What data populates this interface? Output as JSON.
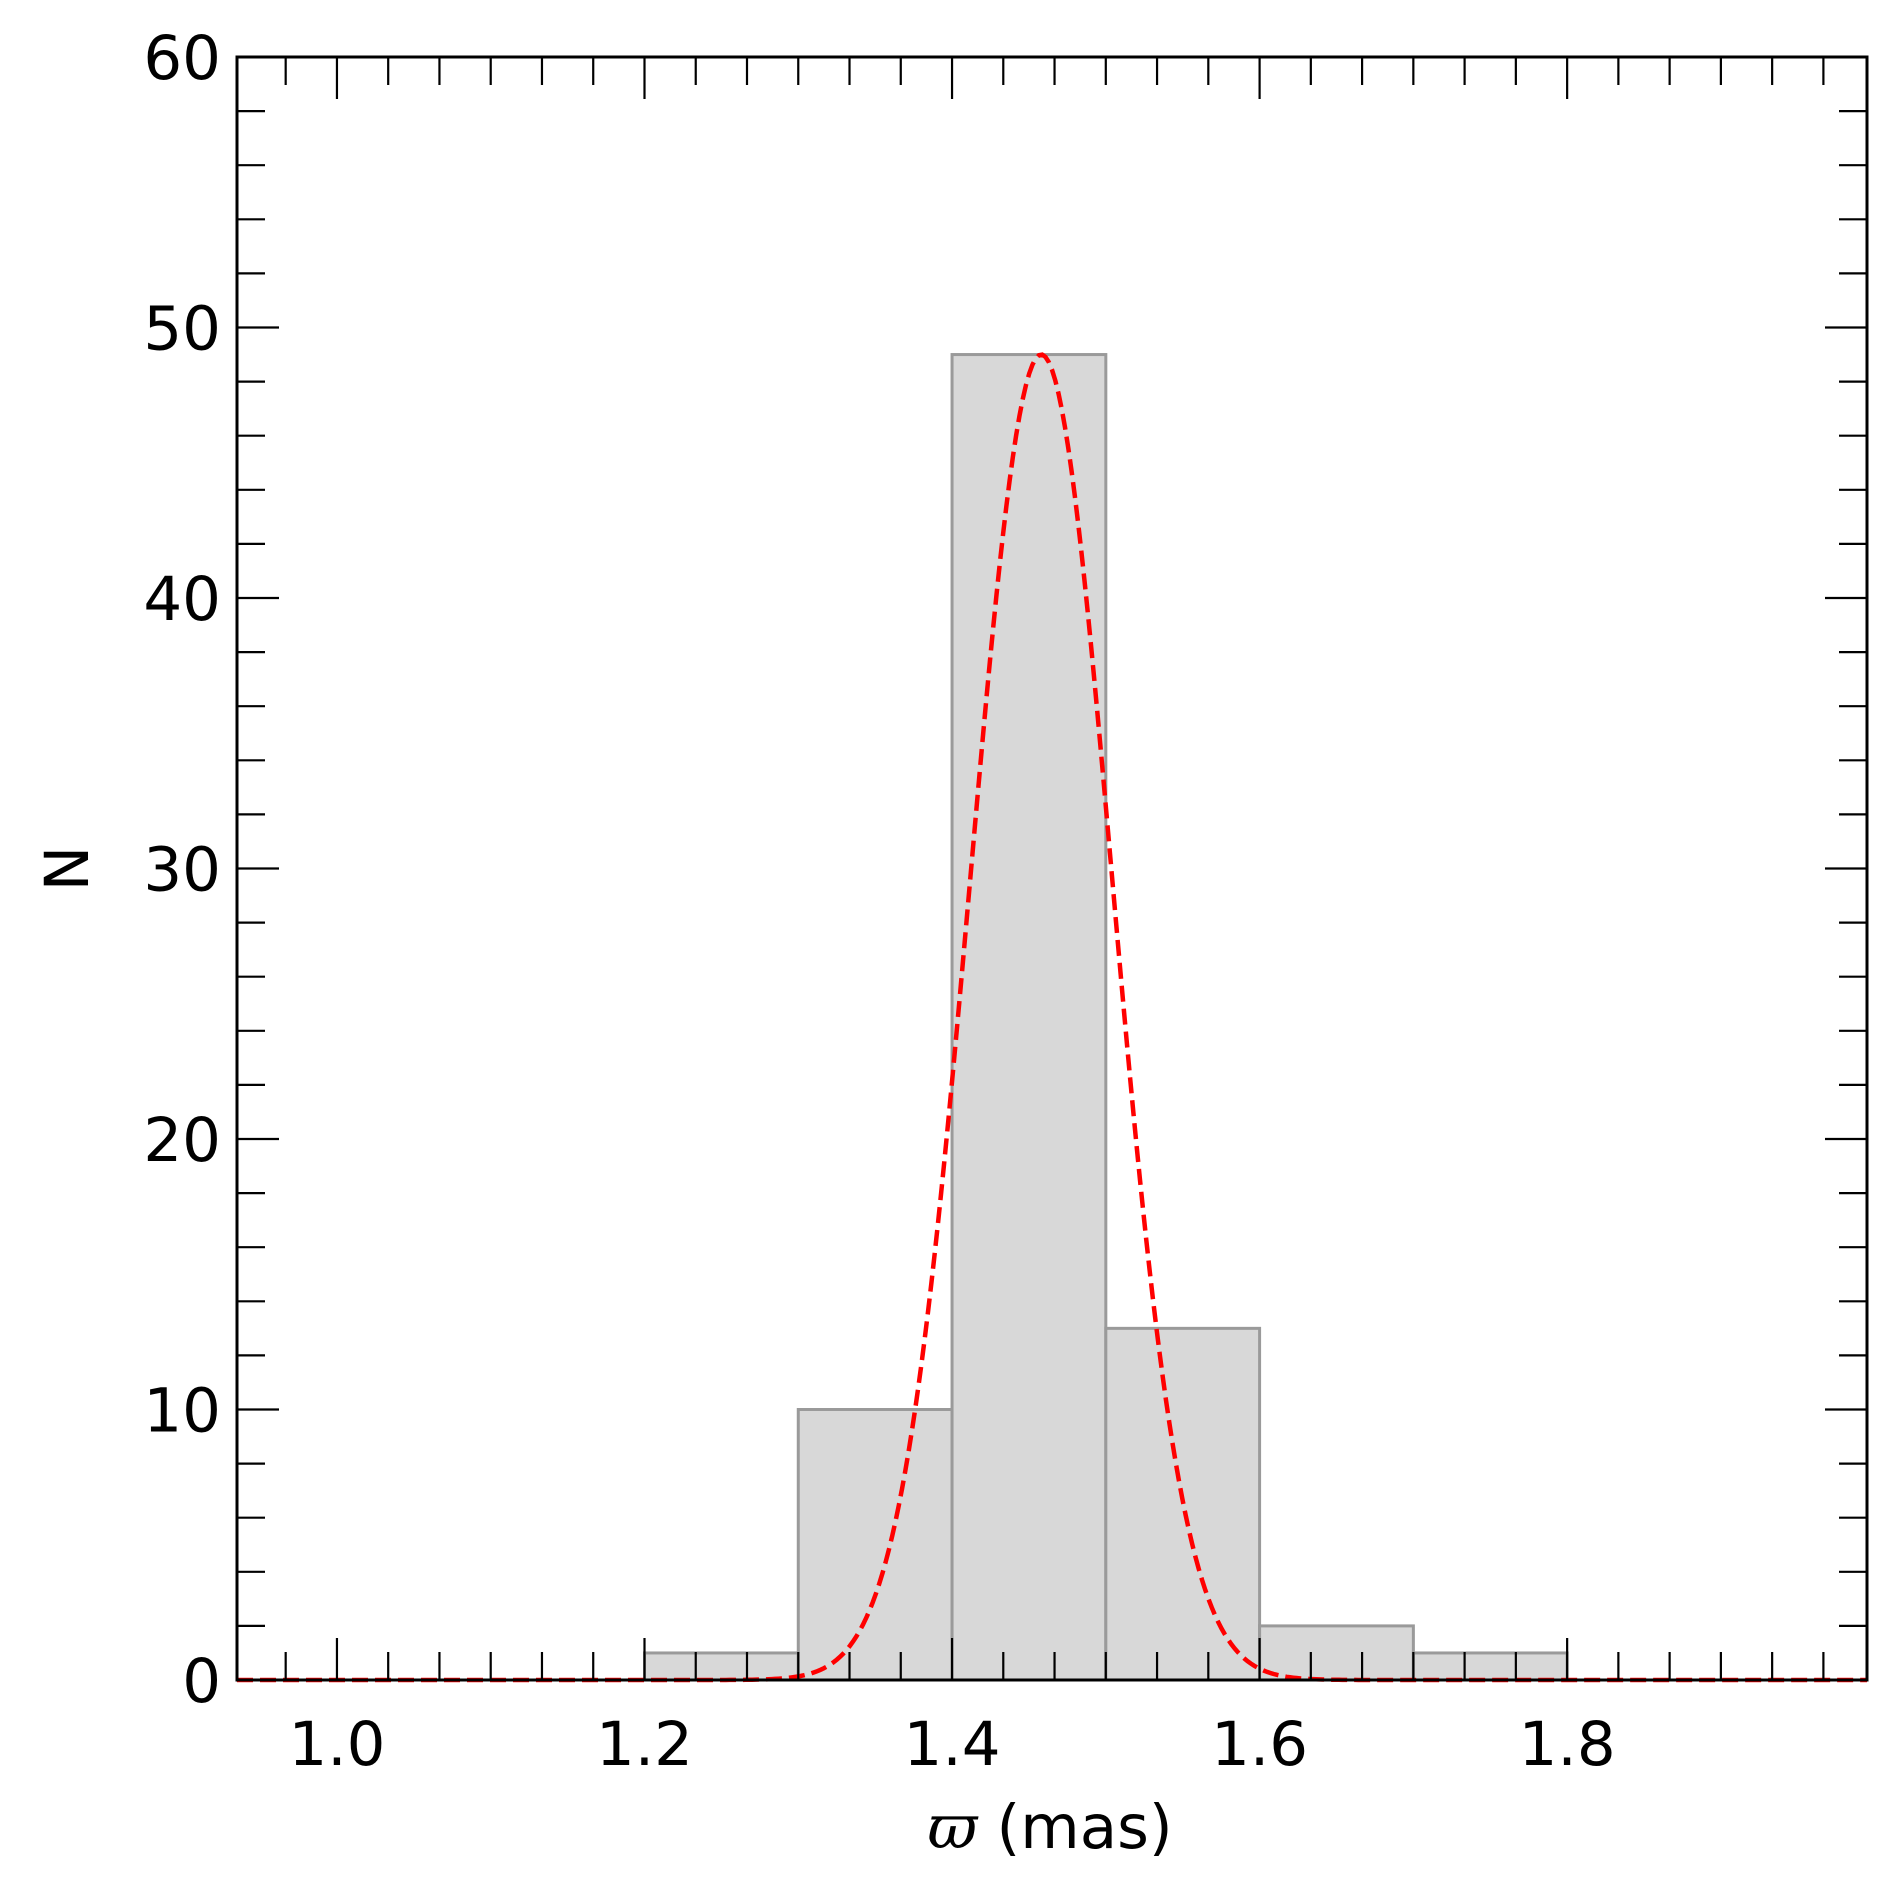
{
  "chart_data": {
    "type": "bar",
    "subtype": "histogram",
    "xlabel_symbol": "ϖ",
    "xlabel_unit": "(mas)",
    "ylabel": "N",
    "xlim": [
      0.935,
      1.995
    ],
    "ylim": [
      0,
      60
    ],
    "x_ticks": [
      1.0,
      1.2,
      1.4,
      1.6,
      1.8
    ],
    "x_tick_labels": [
      "1.0",
      "1.2",
      "1.4",
      "1.6",
      "1.8"
    ],
    "y_ticks": [
      0,
      10,
      20,
      30,
      40,
      50,
      60
    ],
    "y_tick_labels": [
      "0",
      "10",
      "20",
      "30",
      "40",
      "50",
      "60"
    ],
    "x_minor_step": 0.033333,
    "y_minor_step": 2,
    "grid": false,
    "bins": [
      {
        "x0": 1.2,
        "x1": 1.3,
        "count": 1
      },
      {
        "x0": 1.3,
        "x1": 1.4,
        "count": 10
      },
      {
        "x0": 1.4,
        "x1": 1.5,
        "count": 49
      },
      {
        "x0": 1.5,
        "x1": 1.6,
        "count": 13
      },
      {
        "x0": 1.6,
        "x1": 1.7,
        "count": 2
      },
      {
        "x0": 1.7,
        "x1": 1.8,
        "count": 1
      }
    ],
    "fit": {
      "type": "gaussian",
      "mean": 1.458,
      "sigma": 0.046,
      "amplitude": 49
    },
    "colors": {
      "bar_fill": "#d8d8d8",
      "bar_edge": "#9a9a9a",
      "fit_line": "#ff0000",
      "axes": "#000000"
    }
  }
}
